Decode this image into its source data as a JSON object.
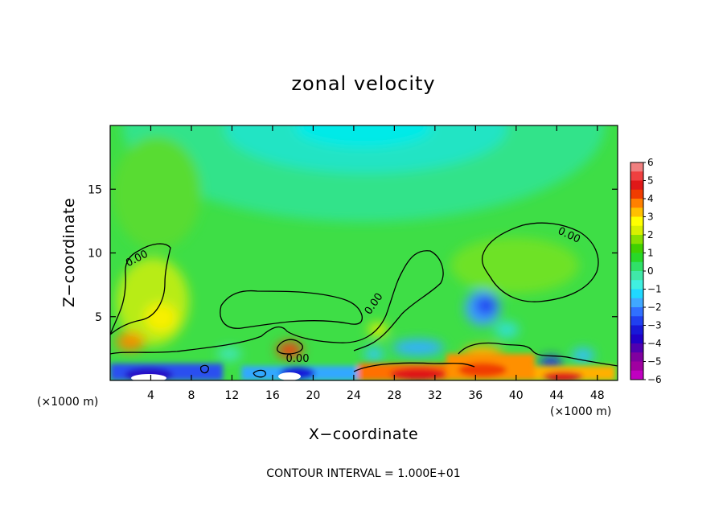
{
  "chart_data": {
    "type": "heatmap",
    "title": "zonal velocity",
    "xlabel": "X−coordinate",
    "ylabel": "Z−coordinate",
    "x_unit_left": "(×1000 m)",
    "x_unit_right": "(×1000 m)",
    "xlim": [
      0,
      50
    ],
    "ylim": [
      0,
      20
    ],
    "xticks": [
      4,
      8,
      12,
      16,
      20,
      24,
      28,
      32,
      36,
      40,
      44,
      48
    ],
    "xtick_labels": [
      "4",
      "8",
      "12",
      "16",
      "20",
      "24",
      "28",
      "32",
      "36",
      "40",
      "44",
      "48"
    ],
    "yticks": [
      5,
      10,
      15
    ],
    "ytick_labels": [
      "5",
      "10",
      "15"
    ],
    "colorbar": {
      "min": -6,
      "max": 6,
      "tick_labels": [
        "6",
        "5",
        "4",
        "3",
        "2",
        "1",
        "0",
        "−1",
        "−2",
        "−3",
        "−4",
        "−5",
        "−6"
      ],
      "colors": [
        "#f08080",
        "#f04040",
        "#e01818",
        "#f03c00",
        "#ff8000",
        "#ffc000",
        "#ffff00",
        "#d8f000",
        "#88e000",
        "#40d000",
        "#28d828",
        "#30e068",
        "#40e8a8",
        "#40f0e0",
        "#20d8ff",
        "#40a8ff",
        "#3070ff",
        "#2040f0",
        "#1818d8",
        "#2000c8",
        "#5000b0",
        "#8000a0",
        "#a000a0",
        "#c000c0"
      ]
    },
    "contour_labels": [
      "0.00",
      "0.00",
      "0.00",
      "0.00"
    ],
    "note": "CONTOUR INTERVAL = 1.000E+01"
  }
}
